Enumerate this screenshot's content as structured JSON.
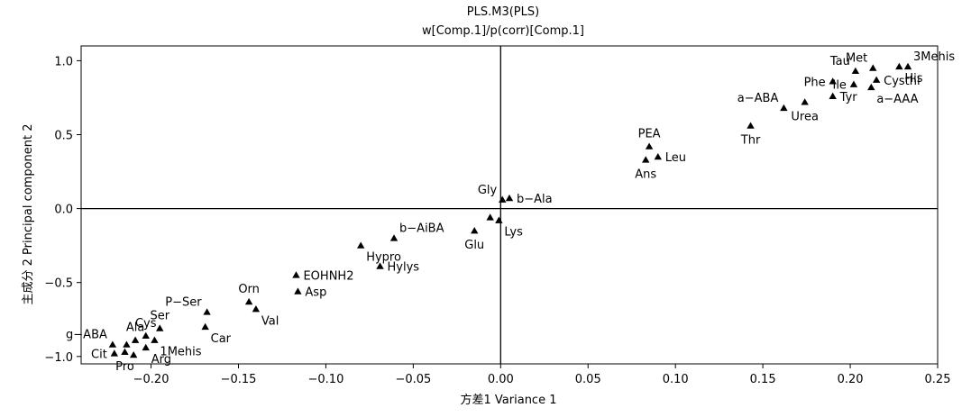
{
  "chart_data": {
    "type": "scatter",
    "title": "PLS.M3(PLS)",
    "subtitle": "w[Comp.1]/p(corr)[Comp.1]",
    "xlabel": "方差1 Variance 1",
    "ylabel": "主成分 2 Principal component 2",
    "xlim": [
      -0.24,
      0.25
    ],
    "ylim": [
      -1.05,
      1.1
    ],
    "xticks": [
      -0.2,
      -0.15,
      -0.1,
      -0.05,
      0.0,
      0.05,
      0.1,
      0.15,
      0.2,
      0.25
    ],
    "xtick_labels": [
      "−0.20",
      "−0.15",
      "−0.10",
      "−0.05",
      "0.00",
      "0.05",
      "0.10",
      "0.15",
      "0.20",
      "0.25"
    ],
    "yticks": [
      1.0,
      0.5,
      0.0,
      -0.5,
      -1.0
    ],
    "ytick_labels": [
      "1.0",
      "0.5",
      "0.0",
      "−0.5",
      "−1.0"
    ],
    "grid": false,
    "reference_lines": {
      "x": 0,
      "y": 0
    },
    "marker": "triangle",
    "points": [
      {
        "label": "3Mehis",
        "x": 0.233,
        "y": 0.96,
        "pos": "ne"
      },
      {
        "label": "His",
        "x": 0.228,
        "y": 0.96,
        "pos": "se"
      },
      {
        "label": "Met",
        "x": 0.213,
        "y": 0.95,
        "pos": "nw"
      },
      {
        "label": "Tau",
        "x": 0.203,
        "y": 0.93,
        "pos": "nw"
      },
      {
        "label": "Cysthi",
        "x": 0.215,
        "y": 0.87,
        "pos": "e"
      },
      {
        "label": "Phe",
        "x": 0.19,
        "y": 0.86,
        "pos": "w"
      },
      {
        "label": "a-AAA",
        "x": 0.212,
        "y": 0.82,
        "pos": "se"
      },
      {
        "label": "Ile",
        "x": 0.202,
        "y": 0.84,
        "pos": "w"
      },
      {
        "label": "Tyr",
        "x": 0.19,
        "y": 0.76,
        "pos": "e"
      },
      {
        "label": "a-ABA",
        "x": 0.162,
        "y": 0.68,
        "pos": "nw"
      },
      {
        "label": "Urea",
        "x": 0.174,
        "y": 0.72,
        "pos": "s"
      },
      {
        "label": "Thr",
        "x": 0.143,
        "y": 0.56,
        "pos": "s"
      },
      {
        "label": "PEA",
        "x": 0.085,
        "y": 0.42,
        "pos": "n"
      },
      {
        "label": "Leu",
        "x": 0.09,
        "y": 0.35,
        "pos": "e"
      },
      {
        "label": "Ans",
        "x": 0.083,
        "y": 0.33,
        "pos": "s"
      },
      {
        "label": "b-Ala",
        "x": 0.005,
        "y": 0.07,
        "pos": "e"
      },
      {
        "label": "Gly",
        "x": 0.001,
        "y": 0.06,
        "pos": "nw"
      },
      {
        "label": "Lys",
        "x": -0.001,
        "y": -0.08,
        "pos": "se"
      },
      {
        "label": "",
        "x": -0.006,
        "y": -0.06,
        "pos": "n"
      },
      {
        "label": "Glu",
        "x": -0.015,
        "y": -0.15,
        "pos": "s"
      },
      {
        "label": "b-AiBA",
        "x": -0.061,
        "y": -0.2,
        "pos": "ne"
      },
      {
        "label": "Hypro",
        "x": -0.08,
        "y": -0.25,
        "pos": "se"
      },
      {
        "label": "Hylys",
        "x": -0.069,
        "y": -0.39,
        "pos": "e"
      },
      {
        "label": "EOHNH2",
        "x": -0.117,
        "y": -0.45,
        "pos": "e"
      },
      {
        "label": "Asp",
        "x": -0.116,
        "y": -0.56,
        "pos": "e"
      },
      {
        "label": "Orn",
        "x": -0.144,
        "y": -0.63,
        "pos": "n"
      },
      {
        "label": "Val",
        "x": -0.14,
        "y": -0.68,
        "pos": "se"
      },
      {
        "label": "P-Ser",
        "x": -0.168,
        "y": -0.7,
        "pos": "nw"
      },
      {
        "label": "Car",
        "x": -0.169,
        "y": -0.8,
        "pos": "se"
      },
      {
        "label": "Ser",
        "x": -0.195,
        "y": -0.81,
        "pos": "n"
      },
      {
        "label": "Cys",
        "x": -0.203,
        "y": -0.86,
        "pos": "n"
      },
      {
        "label": "Ala",
        "x": -0.209,
        "y": -0.89,
        "pos": "n"
      },
      {
        "label": "1Mehis",
        "x": -0.198,
        "y": -0.89,
        "pos": "se"
      },
      {
        "label": "g-ABA",
        "x": -0.222,
        "y": -0.92,
        "pos": "nw"
      },
      {
        "label": "",
        "x": -0.214,
        "y": -0.92,
        "pos": "n"
      },
      {
        "label": "Arg",
        "x": -0.203,
        "y": -0.94,
        "pos": "se"
      },
      {
        "label": "",
        "x": -0.21,
        "y": -0.99,
        "pos": "n"
      },
      {
        "label": "Pro",
        "x": -0.215,
        "y": -0.97,
        "pos": "s"
      },
      {
        "label": "Cit",
        "x": -0.221,
        "y": -0.98,
        "pos": "w"
      }
    ]
  }
}
